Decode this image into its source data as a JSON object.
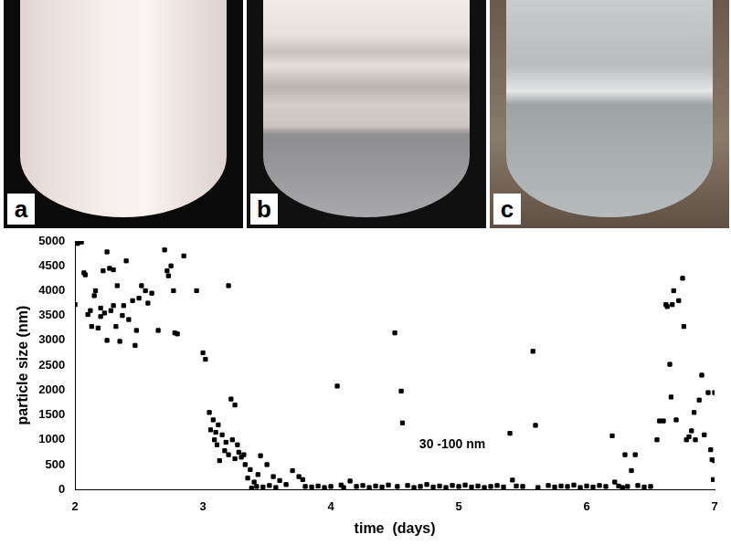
{
  "photos": {
    "labels": [
      "a",
      "b",
      "c"
    ]
  },
  "chart_data": {
    "type": "scatter",
    "x_label": "time  (days)",
    "y_label": "particle size (nm)",
    "xlim": [
      2,
      7
    ],
    "xticks": [
      2,
      3,
      4,
      5,
      6,
      7
    ],
    "ylim": [
      0,
      5000
    ],
    "yticks": [
      0,
      500,
      1000,
      1500,
      2000,
      2500,
      3000,
      3500,
      4000,
      4500,
      5000
    ],
    "grid": false,
    "color": "#000000",
    "marker": "square",
    "annotations": [
      {
        "text": "30 -100 nm",
        "x": 4.95,
        "y": 900
      }
    ],
    "x": [
      2.0,
      2.02,
      2.05,
      2.07,
      2.08,
      2.1,
      2.12,
      2.13,
      2.15,
      2.16,
      2.18,
      2.2,
      2.2,
      2.22,
      2.23,
      2.25,
      2.25,
      2.27,
      2.28,
      2.3,
      2.3,
      2.32,
      2.33,
      2.35,
      2.37,
      2.38,
      2.4,
      2.42,
      2.45,
      2.47,
      2.48,
      2.5,
      2.52,
      2.55,
      2.57,
      2.6,
      2.65,
      2.7,
      2.72,
      2.73,
      2.75,
      2.77,
      2.78,
      2.8,
      2.85,
      2.95,
      3.0,
      3.02,
      3.05,
      3.06,
      3.08,
      3.09,
      3.1,
      3.11,
      3.12,
      3.13,
      3.15,
      3.17,
      3.18,
      3.2,
      3.2,
      3.22,
      3.23,
      3.25,
      3.25,
      3.27,
      3.28,
      3.3,
      3.32,
      3.33,
      3.35,
      3.37,
      3.38,
      3.4,
      3.42,
      3.43,
      3.45,
      3.47,
      3.5,
      3.52,
      3.55,
      3.57,
      3.6,
      3.65,
      3.7,
      3.75,
      3.78,
      3.8,
      3.85,
      3.9,
      3.95,
      4.0,
      4.05,
      4.08,
      4.1,
      4.15,
      4.2,
      4.25,
      4.3,
      4.35,
      4.4,
      4.45,
      4.5,
      4.52,
      4.55,
      4.56,
      4.6,
      4.65,
      4.7,
      4.75,
      4.8,
      4.85,
      4.9,
      4.95,
      5.0,
      5.05,
      5.1,
      5.15,
      5.2,
      5.25,
      5.3,
      5.35,
      5.4,
      5.42,
      5.45,
      5.5,
      5.58,
      5.6,
      5.62,
      5.7,
      5.75,
      5.8,
      5.85,
      5.9,
      5.95,
      6.0,
      6.05,
      6.1,
      6.15,
      6.2,
      6.22,
      6.25,
      6.28,
      6.3,
      6.32,
      6.35,
      6.38,
      6.4,
      6.45,
      6.5,
      6.55,
      6.57,
      6.6,
      6.62,
      6.63,
      6.65,
      6.66,
      6.67,
      6.68,
      6.7,
      6.72,
      6.75,
      6.76,
      6.78,
      6.8,
      6.82,
      6.84,
      6.85,
      6.88,
      6.9,
      6.92,
      6.95,
      6.97,
      6.98,
      7.0,
      7.0,
      6.99
    ],
    "values": [
      3720,
      4950,
      4980,
      4360,
      4320,
      3520,
      3600,
      3280,
      3900,
      4000,
      3250,
      3650,
      3480,
      4400,
      3550,
      4780,
      3000,
      4450,
      3600,
      4420,
      3700,
      3280,
      4100,
      2980,
      3500,
      3700,
      4600,
      3420,
      3800,
      2900,
      3200,
      3850,
      4100,
      4000,
      3750,
      3950,
      3200,
      4820,
      4400,
      4300,
      4500,
      4000,
      3150,
      3130,
      4700,
      4000,
      2750,
      2620,
      1550,
      1200,
      1400,
      1000,
      1150,
      900,
      1300,
      580,
      1100,
      780,
      950,
      4100,
      700,
      1820,
      1000,
      1700,
      620,
      900,
      750,
      650,
      700,
      500,
      230,
      400,
      30,
      150,
      60,
      300,
      680,
      50,
      500,
      80,
      260,
      40,
      180,
      100,
      380,
      260,
      200,
      60,
      50,
      70,
      40,
      60,
      2080,
      90,
      40,
      170,
      60,
      80,
      40,
      70,
      50,
      90,
      3150,
      60,
      1980,
      1340,
      80,
      40,
      60,
      100,
      50,
      70,
      40,
      80,
      60,
      90,
      50,
      70,
      40,
      60,
      80,
      50,
      1130,
      190,
      70,
      60,
      2780,
      1290,
      40,
      80,
      50,
      70,
      60,
      90,
      40,
      70,
      50,
      80,
      60,
      1080,
      150,
      70,
      40,
      700,
      60,
      380,
      700,
      80,
      50,
      60,
      1000,
      1380,
      1380,
      3720,
      3680,
      2520,
      1860,
      3720,
      4000,
      1400,
      3800,
      4250,
      3280,
      1000,
      1060,
      1180,
      1550,
      1000,
      1800,
      2300,
      1100,
      1950,
      800,
      600,
      1950,
      580,
      200
    ]
  }
}
